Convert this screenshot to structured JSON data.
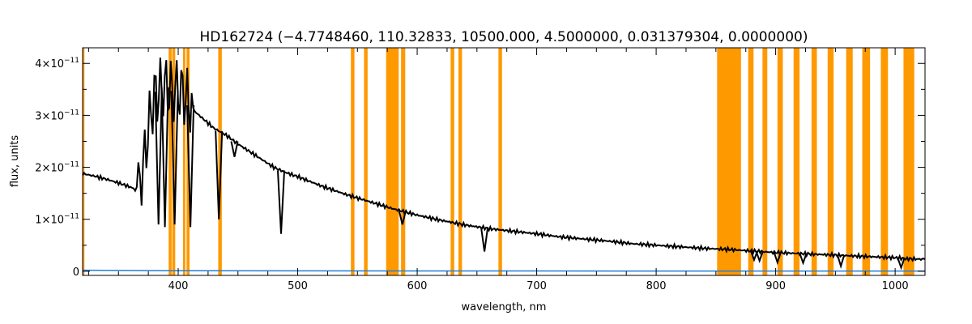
{
  "chart_data": {
    "type": "line",
    "title": "HD162724    (−4.7748460, 110.32833, 10500.000, 4.5000000, 0.031379304, 0.0000000)",
    "xlabel": "wavelength, nm",
    "ylabel": "flux, units",
    "xlim": [
      320,
      1025
    ],
    "ylim": [
      -8e-13,
      4.3e-11
    ],
    "x_ticks": [
      400,
      500,
      600,
      700,
      800,
      900,
      1000
    ],
    "x_tick_labels": [
      "400",
      "500",
      "600",
      "700",
      "800",
      "900",
      "1000"
    ],
    "y_ticks": [
      0,
      1e-11,
      2e-11,
      3e-11,
      4e-11
    ],
    "y_tick_labels": [
      {
        "mantissa": "0",
        "exponent": ""
      },
      {
        "mantissa": "1×10",
        "exponent": "−11"
      },
      {
        "mantissa": "2×10",
        "exponent": "−11"
      },
      {
        "mantissa": "3×10",
        "exponent": "−11"
      },
      {
        "mantissa": "4×10",
        "exponent": "−11"
      }
    ],
    "grid": false,
    "masked_bands_color": "#ff9900",
    "masked_bands_nm": [
      [
        320,
        321.5
      ],
      [
        392,
        394.5
      ],
      [
        395,
        397.5
      ],
      [
        404,
        406
      ],
      [
        407,
        409.5
      ],
      [
        433.5,
        436.5
      ],
      [
        544.5,
        547.5
      ],
      [
        555.5,
        558.5
      ],
      [
        574,
        584.5
      ],
      [
        586.5,
        590
      ],
      [
        628,
        631
      ],
      [
        634.5,
        637.5
      ],
      [
        668,
        671
      ],
      [
        851,
        871
      ],
      [
        877,
        881.5
      ],
      [
        889,
        893
      ],
      [
        901.5,
        906
      ],
      [
        915,
        920
      ],
      [
        930,
        934.5
      ],
      [
        943.5,
        948.5
      ],
      [
        959,
        964.5
      ],
      [
        972.5,
        979
      ],
      [
        988,
        994
      ],
      [
        1007,
        1016
      ]
    ],
    "series": [
      {
        "color": "#000000",
        "x": [
          320,
          330,
          340,
          350,
          360,
          364,
          368,
          372,
          376,
          380,
          385,
          390,
          395,
          400,
          405,
          410,
          415,
          420,
          425,
          430,
          440,
          450,
          460,
          470,
          480,
          490,
          500,
          520,
          540,
          560,
          580,
          600,
          620,
          640,
          660,
          680,
          700,
          720,
          740,
          760,
          780,
          800,
          820,
          840,
          860,
          880,
          900,
          920,
          940,
          960,
          980,
          1000,
          1010,
          1025
        ],
        "y": [
          1.88e-11,
          1.83e-11,
          1.77e-11,
          1.7e-11,
          1.62e-11,
          1.57e-11,
          1.65e-11,
          2.2e-11,
          2.9e-11,
          3.35e-11,
          3.5e-11,
          3.55e-11,
          3.45e-11,
          3.5e-11,
          3.4e-11,
          3.2e-11,
          3.05e-11,
          2.95e-11,
          2.85e-11,
          2.75e-11,
          2.62e-11,
          2.45e-11,
          2.3e-11,
          2.15e-11,
          2e-11,
          1.9e-11,
          1.82e-11,
          1.64e-11,
          1.48e-11,
          1.34e-11,
          1.2e-11,
          1.08e-11,
          9.8e-12,
          8.9e-12,
          8.2e-12,
          7.7e-12,
          7.2e-12,
          6.6e-12,
          6.2e-12,
          5.8e-12,
          5.3e-12,
          5e-12,
          4.7e-12,
          4.4e-12,
          4.2e-12,
          3.9e-12,
          3.6e-12,
          3.4e-12,
          3.2e-12,
          3e-12,
          2.8e-12,
          2.6e-12,
          2.4e-12,
          2.3e-12
        ]
      },
      {
        "color": "#1f7fd8",
        "x": [
          320,
          400,
          500,
          600,
          700,
          800,
          900,
          1025
        ],
        "y": [
          2e-13,
          1e-13,
          8e-14,
          6e-14,
          5e-14,
          4e-14,
          4e-14,
          4e-14
        ]
      }
    ],
    "absorption_lines": [
      {
        "x": 383.5,
        "y": 9e-12
      },
      {
        "x": 388.9,
        "y": 8.5e-12
      },
      {
        "x": 397.0,
        "y": 9e-12
      },
      {
        "x": 410.2,
        "y": 8.5e-12
      },
      {
        "x": 434.0,
        "y": 1e-11
      },
      {
        "x": 447.1,
        "y": 2.2e-11
      },
      {
        "x": 486.1,
        "y": 7.2e-12
      },
      {
        "x": 587.6,
        "y": 9e-12
      },
      {
        "x": 656.3,
        "y": 3.8e-12
      },
      {
        "x": 882,
        "y": 2.2e-12
      },
      {
        "x": 886.5,
        "y": 2e-12
      },
      {
        "x": 901.5,
        "y": 1.7e-12
      },
      {
        "x": 923,
        "y": 1.6e-12
      },
      {
        "x": 954.6,
        "y": 1e-12
      },
      {
        "x": 1005,
        "y": 7e-13
      }
    ]
  }
}
